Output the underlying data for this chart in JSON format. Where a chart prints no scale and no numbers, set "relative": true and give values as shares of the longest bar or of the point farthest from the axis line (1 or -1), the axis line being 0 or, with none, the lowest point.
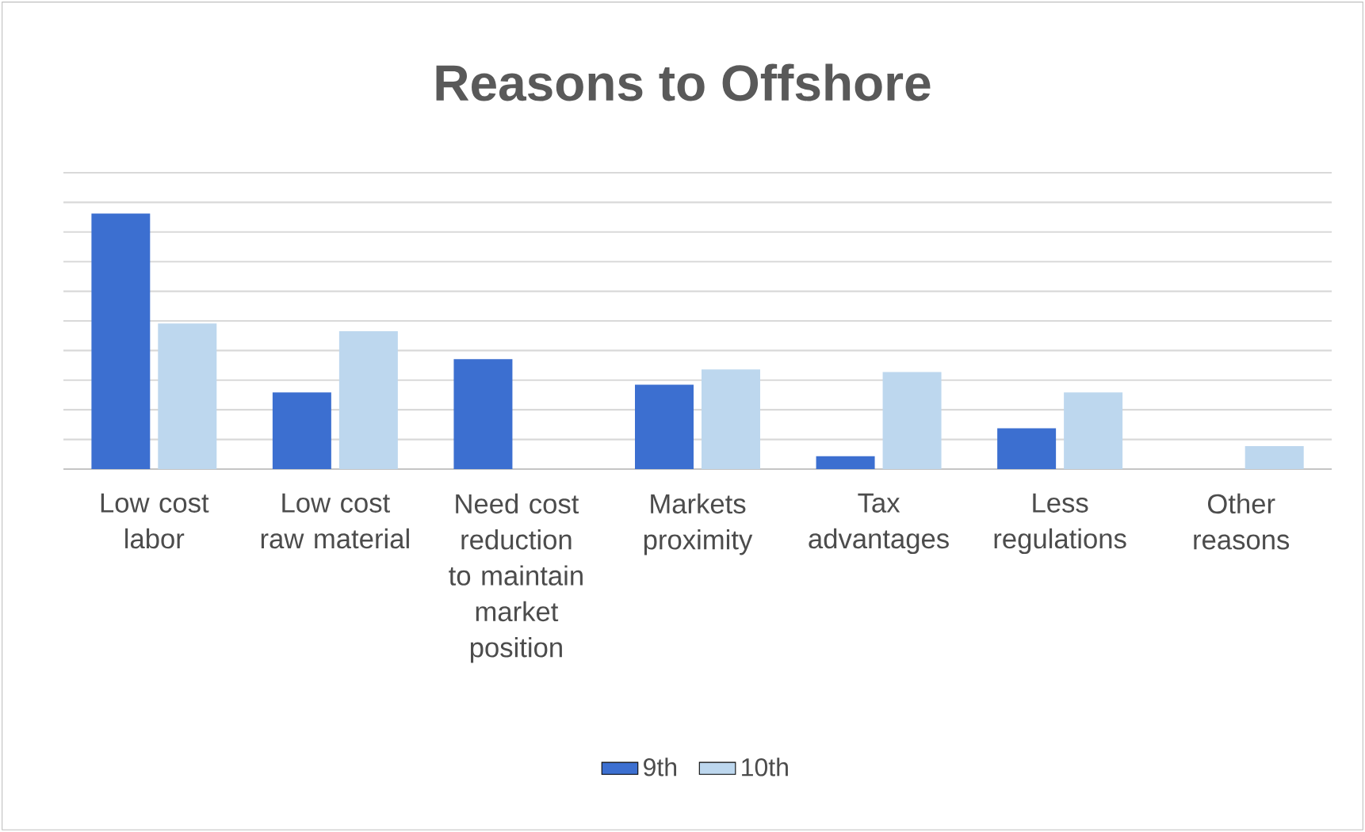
{
  "chart_data": {
    "type": "bar",
    "title": "Reasons to Offshore",
    "categories": [
      "Low cost labor",
      "Low cost raw material",
      "Need  cost reduction to maintain market position",
      "Markets proximity",
      "Tax advantages",
      "Less regulations",
      "Other reasons"
    ],
    "series": [
      {
        "name": "9th",
        "color": "#3c6fd0",
        "values": [
          1,
          0.3,
          0.43,
          0.33,
          0.05,
          0.16,
          null
        ]
      },
      {
        "name": "10th",
        "color": "#bdd7ee",
        "values": [
          0.57,
          0.54,
          null,
          0.39,
          0.38,
          0.3,
          0.09
        ]
      }
    ],
    "relative": true,
    "grid": "y",
    "legend": "bottom"
  }
}
